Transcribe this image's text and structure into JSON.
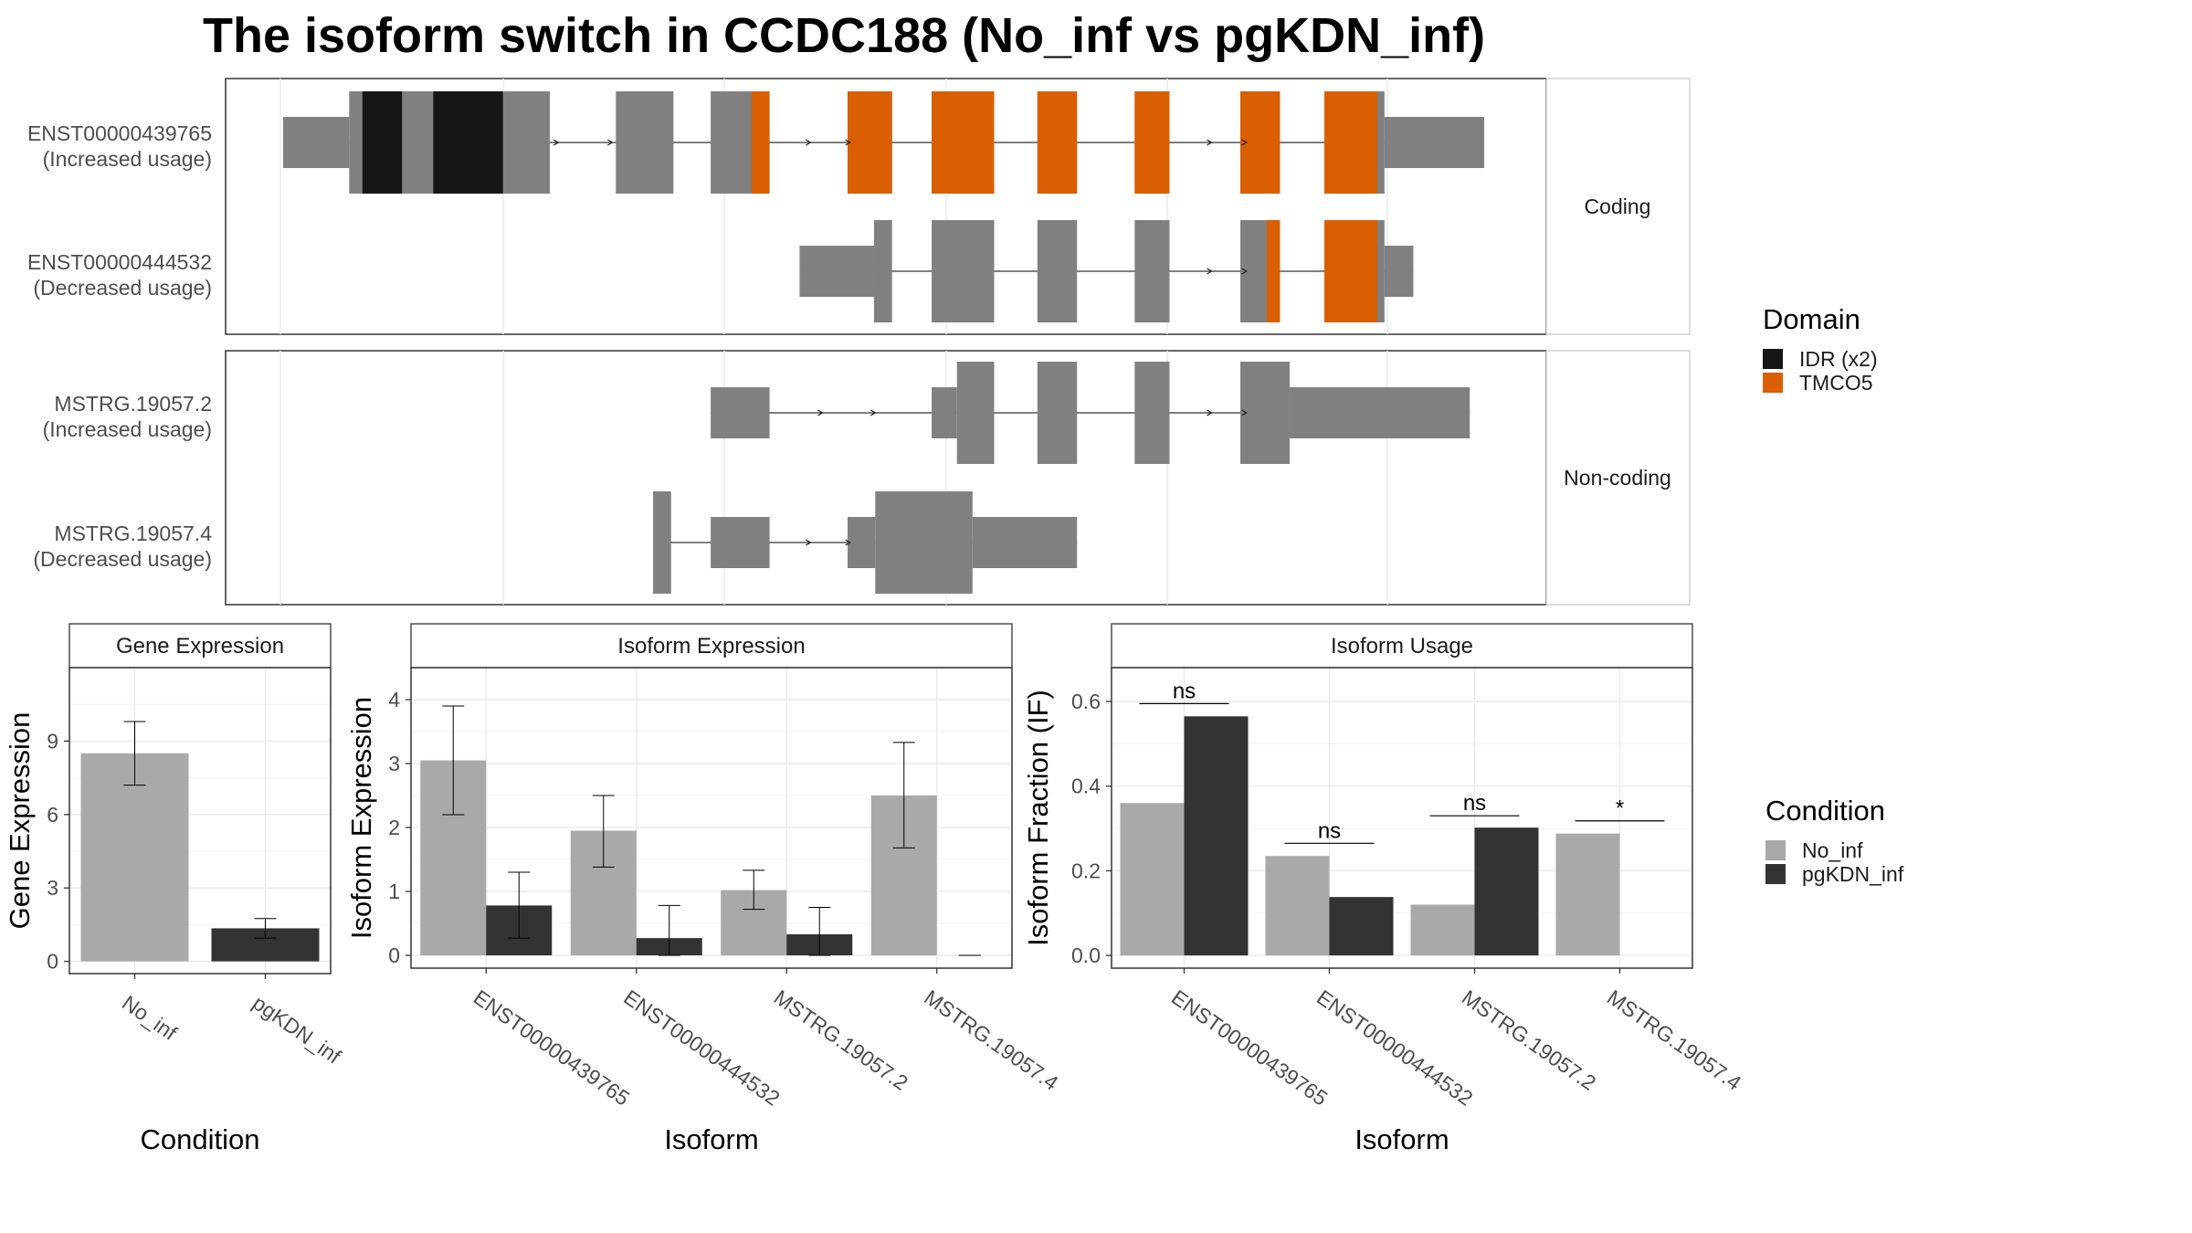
{
  "title": "The isoform switch in CCDC188 (No_inf vs pgKDN_inf)",
  "colors": {
    "no_inf": "#a9a9a9",
    "pgkdn_inf": "#333333",
    "exon": "#808080",
    "idr": "#161616",
    "tmco5": "#d95f02",
    "panel_border": "#333333",
    "strip_bg": "#ffffff",
    "grid": "#ebebeb"
  },
  "structure": {
    "coding_label": "Coding",
    "noncoding_label": "Non-coding",
    "transcripts": [
      {
        "name": "ENST00000439765",
        "usage": "(Increased usage)",
        "group": "coding",
        "exons": [
          {
            "s": 0.0,
            "e": 0.055,
            "w": "utr"
          },
          {
            "s": 0.055,
            "e": 0.222,
            "w": "cds"
          },
          {
            "s": 0.277,
            "e": 0.325,
            "w": "cds"
          },
          {
            "s": 0.356,
            "e": 0.405,
            "w": "cds"
          },
          {
            "s": 0.47,
            "e": 0.507,
            "w": "cds"
          },
          {
            "s": 0.54,
            "e": 0.592,
            "w": "cds"
          },
          {
            "s": 0.628,
            "e": 0.661,
            "w": "cds"
          },
          {
            "s": 0.709,
            "e": 0.738,
            "w": "cds"
          },
          {
            "s": 0.797,
            "e": 0.83,
            "w": "cds"
          },
          {
            "s": 0.867,
            "e": 0.917,
            "w": "cds"
          },
          {
            "s": 0.917,
            "e": 1.0,
            "w": "utr"
          }
        ],
        "domains": [
          {
            "type": "idr",
            "s": 0.066,
            "e": 0.099
          },
          {
            "type": "idr",
            "s": 0.125,
            "e": 0.183
          },
          {
            "type": "tmco5",
            "s": 0.39,
            "e": 0.405
          },
          {
            "type": "tmco5",
            "s": 0.47,
            "e": 0.507
          },
          {
            "type": "tmco5",
            "s": 0.54,
            "e": 0.592
          },
          {
            "type": "tmco5",
            "s": 0.628,
            "e": 0.661
          },
          {
            "type": "tmco5",
            "s": 0.709,
            "e": 0.738
          },
          {
            "type": "tmco5",
            "s": 0.797,
            "e": 0.83
          },
          {
            "type": "tmco5",
            "s": 0.867,
            "e": 0.911
          }
        ],
        "arrows": [
          0.229,
          0.274,
          0.439,
          0.472,
          0.773,
          0.802
        ]
      },
      {
        "name": "ENST00000444532",
        "usage": "(Decreased usage)",
        "group": "coding",
        "exons": [
          {
            "s": 0.43,
            "e": 0.492,
            "w": "utr"
          },
          {
            "s": 0.492,
            "e": 0.507,
            "w": "cds"
          },
          {
            "s": 0.54,
            "e": 0.592,
            "w": "cds"
          },
          {
            "s": 0.628,
            "e": 0.661,
            "w": "cds"
          },
          {
            "s": 0.709,
            "e": 0.738,
            "w": "cds"
          },
          {
            "s": 0.797,
            "e": 0.83,
            "w": "cds"
          },
          {
            "s": 0.867,
            "e": 0.917,
            "w": "cds"
          },
          {
            "s": 0.917,
            "e": 0.941,
            "w": "utr"
          }
        ],
        "domains": [
          {
            "type": "tmco5",
            "s": 0.819,
            "e": 0.83
          },
          {
            "type": "tmco5",
            "s": 0.867,
            "e": 0.911
          }
        ],
        "arrows": [
          0.773,
          0.802
        ]
      },
      {
        "name": "MSTRG.19057.2",
        "usage": "(Increased usage)",
        "group": "noncoding",
        "exons": [
          {
            "s": 0.356,
            "e": 0.405,
            "w": "utr"
          },
          {
            "s": 0.54,
            "e": 0.561,
            "w": "utr"
          },
          {
            "s": 0.561,
            "e": 0.592,
            "w": "cds"
          },
          {
            "s": 0.628,
            "e": 0.661,
            "w": "cds"
          },
          {
            "s": 0.709,
            "e": 0.738,
            "w": "cds"
          },
          {
            "s": 0.797,
            "e": 0.838,
            "w": "cds"
          },
          {
            "s": 0.838,
            "e": 0.988,
            "w": "utr"
          }
        ],
        "domains": [],
        "arrows": [
          0.449,
          0.493,
          0.773,
          0.802
        ]
      },
      {
        "name": "MSTRG.19057.4",
        "usage": "(Decreased usage)",
        "group": "noncoding",
        "exons": [
          {
            "s": 0.308,
            "e": 0.323,
            "w": "cds"
          },
          {
            "s": 0.356,
            "e": 0.405,
            "w": "utr"
          },
          {
            "s": 0.47,
            "e": 0.493,
            "w": "utr"
          },
          {
            "s": 0.493,
            "e": 0.574,
            "w": "cds"
          },
          {
            "s": 0.574,
            "e": 0.661,
            "w": "utr"
          }
        ],
        "domains": [],
        "arrows": [
          0.439,
          0.472
        ]
      }
    ]
  },
  "legend_domain": {
    "title": "Domain",
    "items": [
      {
        "label": "IDR (x2)",
        "color": "#161616"
      },
      {
        "label": "TMCO5",
        "color": "#d95f02"
      }
    ]
  },
  "legend_condition": {
    "title": "Condition",
    "items": [
      {
        "label": "No_inf",
        "color": "#a9a9a9"
      },
      {
        "label": "pgKDN_inf",
        "color": "#333333"
      }
    ]
  },
  "chart_data": [
    {
      "type": "bar",
      "title": "Gene Expression",
      "xlabel": "Condition",
      "ylabel": "Gene Expression",
      "categories": [
        "No_inf",
        "pgKDN_inf"
      ],
      "values": [
        8.5,
        1.35
      ],
      "errors": [
        [
          7.2,
          9.8
        ],
        [
          0.95,
          1.75
        ]
      ],
      "ylim": [
        -0.5,
        12
      ],
      "yticks": [
        0,
        3,
        6,
        9
      ]
    },
    {
      "type": "bar",
      "title": "Isoform Expression",
      "xlabel": "Isoform",
      "ylabel": "Isoform Expression",
      "categories": [
        "ENST00000439765",
        "ENST00000444532",
        "MSTRG.19057.2",
        "MSTRG.19057.4"
      ],
      "series": [
        {
          "name": "No_inf",
          "values": [
            3.05,
            1.95,
            1.02,
            2.5
          ],
          "errors": [
            [
              2.2,
              3.9
            ],
            [
              1.38,
              2.5
            ],
            [
              0.72,
              1.33
            ],
            [
              1.68,
              3.33
            ]
          ]
        },
        {
          "name": "pgKDN_inf",
          "values": [
            0.78,
            0.27,
            0.33,
            0.0
          ],
          "errors": [
            [
              0.27,
              1.3
            ],
            [
              0.0,
              0.78
            ],
            [
              0.0,
              0.75
            ],
            [
              0.0,
              0.0
            ]
          ]
        }
      ],
      "ylim": [
        -0.2,
        4.5
      ],
      "yticks": [
        0,
        1,
        2,
        3,
        4
      ]
    },
    {
      "type": "bar",
      "title": "Isoform Usage",
      "xlabel": "Isoform",
      "ylabel": "Isoform Fraction (IF)",
      "categories": [
        "ENST00000439765",
        "ENST00000444532",
        "MSTRG.19057.2",
        "MSTRG.19057.4"
      ],
      "series": [
        {
          "name": "No_inf",
          "values": [
            0.36,
            0.235,
            0.12,
            0.288
          ]
        },
        {
          "name": "pgKDN_inf",
          "values": [
            0.565,
            0.138,
            0.302,
            0.0
          ]
        }
      ],
      "significance": [
        {
          "label": "ns",
          "y": 0.595
        },
        {
          "label": "ns",
          "y": 0.265
        },
        {
          "label": "ns",
          "y": 0.33
        },
        {
          "label": "*",
          "y": 0.318
        }
      ],
      "ylim": [
        -0.03,
        0.68
      ],
      "yticks": [
        0.0,
        0.2,
        0.4,
        0.6
      ]
    }
  ]
}
